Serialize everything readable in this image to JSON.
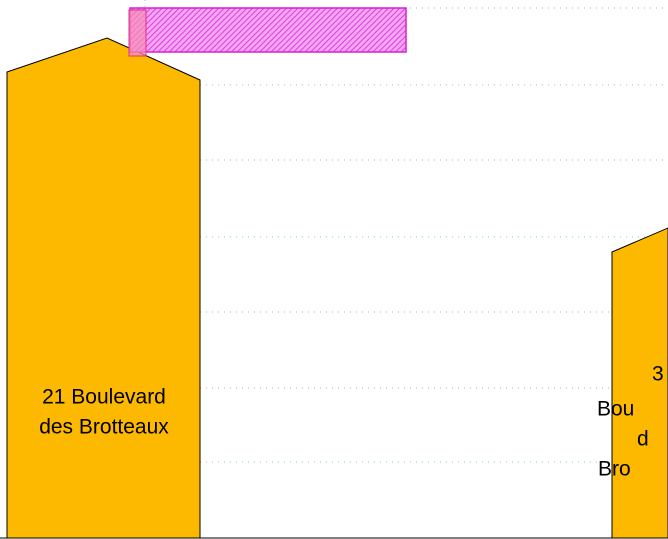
{
  "nodes": [
    {
      "label_lines": [
        "21 Boulevard",
        "des Brotteaux"
      ]
    },
    {
      "label_lines": [
        "3",
        "Bou",
        "d",
        "Bro"
      ]
    }
  ]
}
